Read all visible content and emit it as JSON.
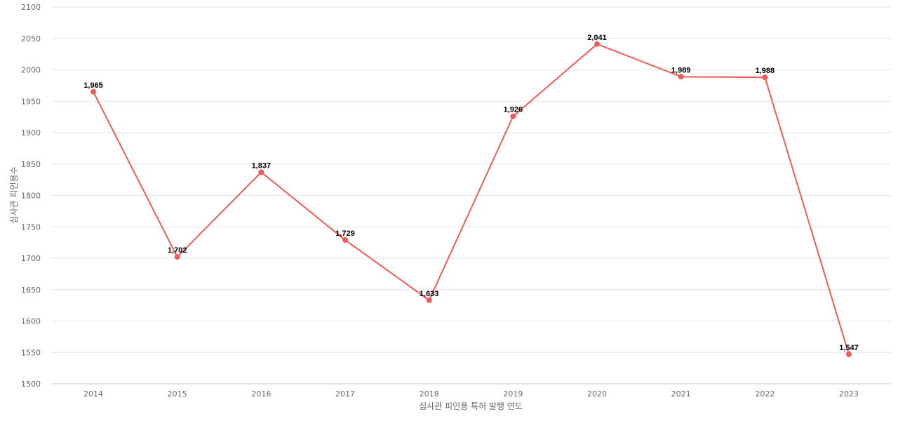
{
  "chart_data": {
    "type": "line",
    "title": "",
    "xlabel": "심사관 피인용 특허 발행 연도",
    "ylabel": "심사관 피인용수",
    "categories": [
      "2014",
      "2015",
      "2016",
      "2017",
      "2018",
      "2019",
      "2020",
      "2021",
      "2022",
      "2023"
    ],
    "series": [
      {
        "values": [
          1965,
          1702,
          1837,
          1729,
          1633,
          1926,
          2041,
          1989,
          1988,
          1547
        ],
        "data_labels": [
          "1,965",
          "1,702",
          "1,837",
          "1,729",
          "1,633",
          "1,926",
          "2,041",
          "1,989",
          "1,988",
          "1,547"
        ],
        "color": "#ef5a5a"
      }
    ],
    "ylim": [
      1500,
      2100
    ],
    "yticks": [
      "1500",
      "1550",
      "1600",
      "1650",
      "1700",
      "1750",
      "1800",
      "1850",
      "1900",
      "1950",
      "2000",
      "2050",
      "2100"
    ],
    "grid": true,
    "legend": "none",
    "colors": {
      "line": "#ef5a5a",
      "grid": "#e6e6e6",
      "axis": "#cccccc",
      "tick_text": "#666666"
    }
  }
}
